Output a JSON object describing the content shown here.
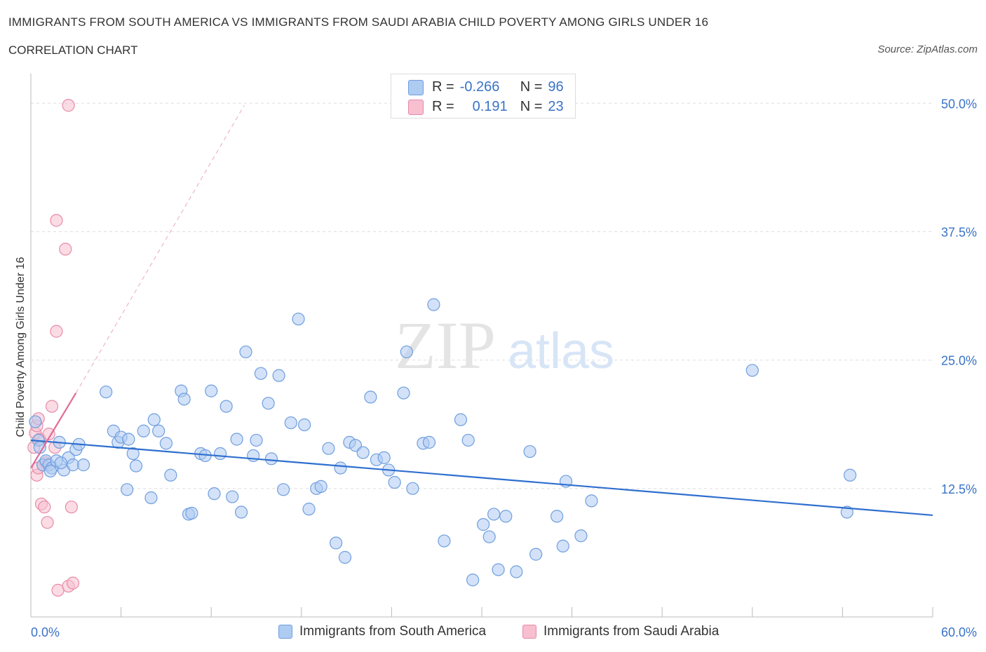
{
  "header": {
    "title": "IMMIGRANTS FROM SOUTH AMERICA VS IMMIGRANTS FROM SAUDI ARABIA CHILD POVERTY AMONG GIRLS UNDER 16",
    "subtitle": "CORRELATION CHART",
    "source": "Source: ZipAtlas.com"
  },
  "stats": {
    "r_label": "R =",
    "n_label": "N =",
    "blue_r": "-0.266",
    "blue_n": "96",
    "pink_r": "0.191",
    "pink_n": "23"
  },
  "watermark": {
    "zip": "ZIP",
    "atlas": "atlas"
  },
  "colors": {
    "blue_fill": "#aecbf2",
    "blue_stroke": "#6f9ede",
    "blue_line": "#2e6fcf",
    "pink_fill": "#f7bfd0",
    "pink_stroke": "#e88aa8",
    "pink_line": "#e06b98",
    "axis_text": "#3a73c7",
    "grid": "#dedede"
  },
  "chart_data": {
    "type": "scatter",
    "title": "IMMIGRANTS FROM SOUTH AMERICA VS IMMIGRANTS FROM SAUDI ARABIA CHILD POVERTY AMONG GIRLS UNDER 16",
    "xlabel": "",
    "ylabel": "Child Poverty Among Girls Under 16",
    "xlim": [
      0,
      60
    ],
    "ylim": [
      0,
      52
    ],
    "x_tick_labels": [
      {
        "value": 0,
        "label": "0.0%"
      },
      {
        "value": 60,
        "label": "60.0%"
      }
    ],
    "y_tick_labels": [
      {
        "value": 12.5,
        "label": "12.5%"
      },
      {
        "value": 25,
        "label": "25.0%"
      },
      {
        "value": 37.5,
        "label": "37.5%"
      },
      {
        "value": 50,
        "label": "50.0%"
      }
    ],
    "grid": true,
    "legend_position": "bottom",
    "series": [
      {
        "name": "Immigrants from South America",
        "color": "#aecbf2",
        "points": [
          [
            0.3,
            19.0
          ],
          [
            0.5,
            17.2
          ],
          [
            0.8,
            14.8
          ],
          [
            1.0,
            15.2
          ],
          [
            1.2,
            14.8
          ],
          [
            1.4,
            14.5
          ],
          [
            1.7,
            15.2
          ],
          [
            1.9,
            17.0
          ],
          [
            2.2,
            14.3
          ],
          [
            2.5,
            15.5
          ],
          [
            2.8,
            14.8
          ],
          [
            3.0,
            16.3
          ],
          [
            3.2,
            16.8
          ],
          [
            3.5,
            14.8
          ],
          [
            5.0,
            21.9
          ],
          [
            5.5,
            18.1
          ],
          [
            5.8,
            17.0
          ],
          [
            6.0,
            17.5
          ],
          [
            6.5,
            17.3
          ],
          [
            6.8,
            15.9
          ],
          [
            7.0,
            14.7
          ],
          [
            6.4,
            12.4
          ],
          [
            7.5,
            18.1
          ],
          [
            8.0,
            11.6
          ],
          [
            8.2,
            19.2
          ],
          [
            8.5,
            18.1
          ],
          [
            9.0,
            16.9
          ],
          [
            9.3,
            13.8
          ],
          [
            10.0,
            22.0
          ],
          [
            10.2,
            21.2
          ],
          [
            10.5,
            10.0
          ],
          [
            10.7,
            10.1
          ],
          [
            11.3,
            15.9
          ],
          [
            11.6,
            15.7
          ],
          [
            12.0,
            22.0
          ],
          [
            12.2,
            12.0
          ],
          [
            12.6,
            15.9
          ],
          [
            13.0,
            20.5
          ],
          [
            13.4,
            11.7
          ],
          [
            13.7,
            17.3
          ],
          [
            14.0,
            10.2
          ],
          [
            14.3,
            25.8
          ],
          [
            14.8,
            15.7
          ],
          [
            15.0,
            17.2
          ],
          [
            15.3,
            23.7
          ],
          [
            15.8,
            20.8
          ],
          [
            16.0,
            15.4
          ],
          [
            16.5,
            23.5
          ],
          [
            16.8,
            12.4
          ],
          [
            17.3,
            18.9
          ],
          [
            17.8,
            29.0
          ],
          [
            18.2,
            18.7
          ],
          [
            18.5,
            10.5
          ],
          [
            19.0,
            12.5
          ],
          [
            19.3,
            12.7
          ],
          [
            19.8,
            16.4
          ],
          [
            20.3,
            7.2
          ],
          [
            20.6,
            14.5
          ],
          [
            20.9,
            5.8
          ],
          [
            21.2,
            17.0
          ],
          [
            21.6,
            16.7
          ],
          [
            22.1,
            16.0
          ],
          [
            22.6,
            21.4
          ],
          [
            23.0,
            15.3
          ],
          [
            23.5,
            15.5
          ],
          [
            23.8,
            14.3
          ],
          [
            24.2,
            13.1
          ],
          [
            24.8,
            21.8
          ],
          [
            25.0,
            25.8
          ],
          [
            25.4,
            12.5
          ],
          [
            26.1,
            16.9
          ],
          [
            26.5,
            17.0
          ],
          [
            26.8,
            30.4
          ],
          [
            27.5,
            7.4
          ],
          [
            28.6,
            19.2
          ],
          [
            29.1,
            17.2
          ],
          [
            29.4,
            3.6
          ],
          [
            30.1,
            9.0
          ],
          [
            30.5,
            7.8
          ],
          [
            30.8,
            10.0
          ],
          [
            31.1,
            4.6
          ],
          [
            31.6,
            9.8
          ],
          [
            32.3,
            4.4
          ],
          [
            33.2,
            16.1
          ],
          [
            33.6,
            6.1
          ],
          [
            35.0,
            9.8
          ],
          [
            35.4,
            6.9
          ],
          [
            35.6,
            13.2
          ],
          [
            36.6,
            7.9
          ],
          [
            37.3,
            11.3
          ],
          [
            48.0,
            24.0
          ],
          [
            54.3,
            10.2
          ],
          [
            54.5,
            13.8
          ],
          [
            0.6,
            16.5
          ],
          [
            1.3,
            14.2
          ],
          [
            2.0,
            15.0
          ]
        ],
        "trend": {
          "x": [
            0,
            60
          ],
          "y": [
            17.2,
            9.9
          ]
        }
      },
      {
        "name": "Immigrants from Saudi Arabia",
        "color": "#f7bfd0",
        "points": [
          [
            0.2,
            16.5
          ],
          [
            0.3,
            17.9
          ],
          [
            0.4,
            18.6
          ],
          [
            0.5,
            19.3
          ],
          [
            0.6,
            17.3
          ],
          [
            0.8,
            14.8
          ],
          [
            0.4,
            13.8
          ],
          [
            1.0,
            15.0
          ],
          [
            1.2,
            17.8
          ],
          [
            1.4,
            20.5
          ],
          [
            1.6,
            16.5
          ],
          [
            2.5,
            49.8
          ],
          [
            1.7,
            38.6
          ],
          [
            2.3,
            35.8
          ],
          [
            1.7,
            27.8
          ],
          [
            0.7,
            11.0
          ],
          [
            0.9,
            10.7
          ],
          [
            1.1,
            9.2
          ],
          [
            2.7,
            10.7
          ],
          [
            1.8,
            2.6
          ],
          [
            2.5,
            3.0
          ],
          [
            2.8,
            3.3
          ],
          [
            0.5,
            14.5
          ]
        ],
        "trend": {
          "x": [
            0,
            3.0
          ],
          "y": [
            14.5,
            21.8
          ]
        },
        "trend_extended": {
          "x": [
            3.0,
            14.2
          ],
          "y": [
            21.8,
            49.8
          ]
        }
      }
    ]
  }
}
